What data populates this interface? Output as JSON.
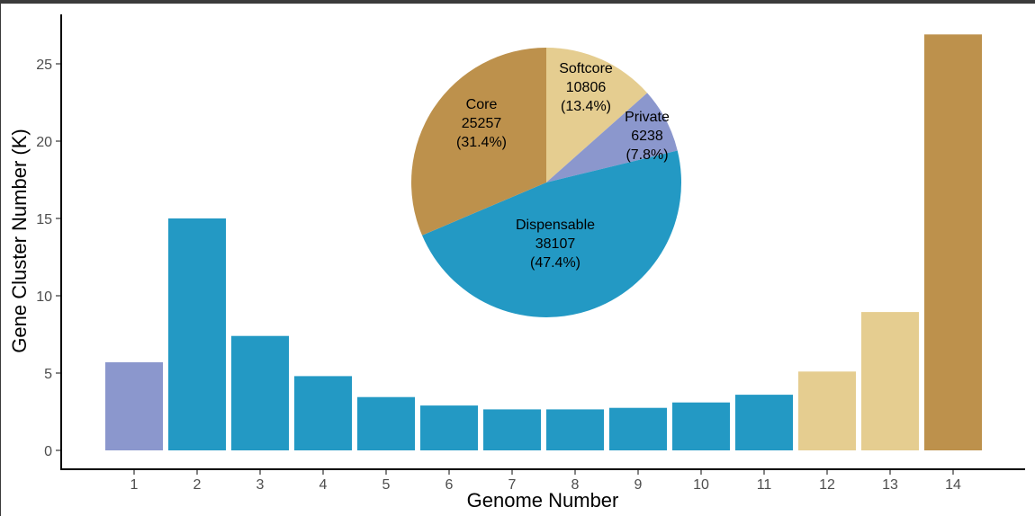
{
  "chart_data": [
    {
      "type": "bar",
      "xlabel": "Genome Number",
      "ylabel": "Gene Cluster Number (K)",
      "categories": [
        "1",
        "2",
        "3",
        "4",
        "5",
        "6",
        "7",
        "8",
        "9",
        "10",
        "11",
        "12",
        "13",
        "14"
      ],
      "values": [
        5.7,
        15.0,
        7.4,
        4.8,
        3.45,
        2.9,
        2.65,
        2.65,
        2.75,
        3.1,
        3.6,
        5.1,
        8.95,
        26.9
      ],
      "bar_groups": [
        "Private",
        "Dispensable",
        "Dispensable",
        "Dispensable",
        "Dispensable",
        "Dispensable",
        "Dispensable",
        "Dispensable",
        "Dispensable",
        "Dispensable",
        "Dispensable",
        "Softcore",
        "Softcore",
        "Core"
      ],
      "ylim": [
        0,
        27.5
      ],
      "yticks": [
        0,
        5,
        10,
        15,
        20,
        25
      ],
      "grid": false,
      "colors": {
        "Private": "#8b97cd",
        "Dispensable": "#2399c4",
        "Softcore": "#e5cd90",
        "Core": "#bd914c"
      }
    },
    {
      "type": "pie",
      "slices": [
        {
          "name": "Softcore",
          "value": 10806,
          "pct": "(13.4%)",
          "color": "#e5cd90"
        },
        {
          "name": "Private",
          "value": 6238,
          "pct": "(7.8%)",
          "color": "#8b97cd"
        },
        {
          "name": "Dispensable",
          "value": 38107,
          "pct": "(47.4%)",
          "color": "#2399c4"
        },
        {
          "name": "Core",
          "value": 25257,
          "pct": "(31.4%)",
          "color": "#bd914c"
        }
      ]
    }
  ]
}
